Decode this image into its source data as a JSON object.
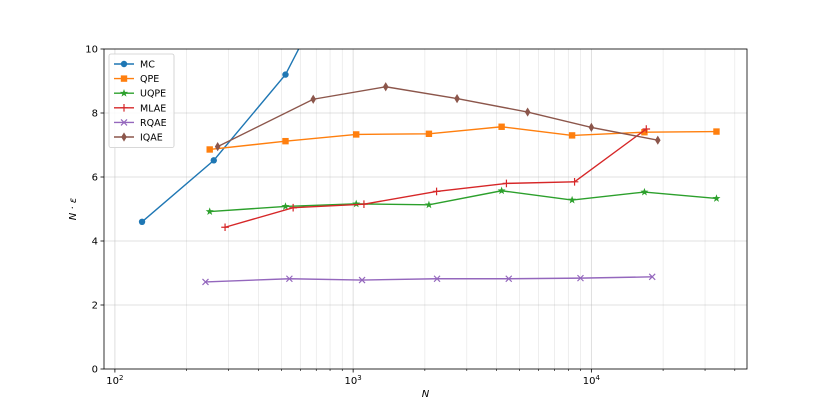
{
  "chart_data": {
    "type": "line",
    "xlabel": "N",
    "ylabel": "N · ε",
    "xscale": "log",
    "xlim": [
      90,
      45000
    ],
    "ylim": [
      0,
      10
    ],
    "yticks": [
      0,
      2,
      4,
      6,
      8,
      10
    ],
    "xticks": [
      {
        "value": 100,
        "base": "10",
        "exp": "2"
      },
      {
        "value": 1000,
        "base": "10",
        "exp": "3"
      },
      {
        "value": 10000,
        "base": "10",
        "exp": "4"
      }
    ],
    "grid": true,
    "legend_position": "top-left",
    "series": [
      {
        "name": "MC",
        "color": "#1f77b4",
        "marker": "circle",
        "x": [
          130,
          260,
          520,
          650
        ],
        "y": [
          4.6,
          6.52,
          9.2,
          10.6
        ]
      },
      {
        "name": "QPE",
        "color": "#ff7f0e",
        "marker": "square",
        "x": [
          250,
          520,
          1030,
          2080,
          4200,
          8300,
          16700,
          33500
        ],
        "y": [
          6.86,
          7.12,
          7.33,
          7.35,
          7.57,
          7.3,
          7.4,
          7.42
        ]
      },
      {
        "name": "UQPE",
        "color": "#2ca02c",
        "marker": "star",
        "x": [
          250,
          520,
          1030,
          2080,
          4200,
          8300,
          16700,
          33500
        ],
        "y": [
          4.92,
          5.08,
          5.16,
          5.13,
          5.57,
          5.28,
          5.53,
          5.33
        ]
      },
      {
        "name": "MLAE",
        "color": "#d62728",
        "marker": "plus",
        "x": [
          290,
          560,
          1110,
          2240,
          4400,
          8500,
          17000
        ],
        "y": [
          4.43,
          5.04,
          5.15,
          5.55,
          5.8,
          5.85,
          7.5
        ]
      },
      {
        "name": "RQAE",
        "color": "#9467bd",
        "marker": "x",
        "x": [
          240,
          540,
          1090,
          2250,
          4500,
          9000,
          18000
        ],
        "y": [
          2.72,
          2.82,
          2.78,
          2.82,
          2.82,
          2.84,
          2.88
        ]
      },
      {
        "name": "IQAE",
        "color": "#8c564b",
        "marker": "diamond",
        "x": [
          270,
          680,
          1370,
          2730,
          5400,
          10000,
          19000
        ],
        "y": [
          6.95,
          8.43,
          8.82,
          8.45,
          8.03,
          7.55,
          7.15
        ]
      }
    ]
  }
}
